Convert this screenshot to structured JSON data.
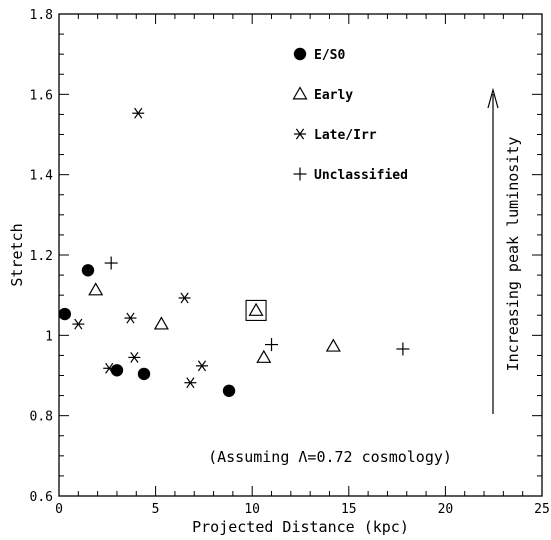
{
  "chart_data": {
    "type": "scatter",
    "xlabel": "Projected Distance (kpc)",
    "ylabel": "Stretch",
    "xlim": [
      0,
      25
    ],
    "ylim": [
      0.6,
      1.8
    ],
    "xticks": [
      0,
      5,
      10,
      15,
      20,
      25
    ],
    "yticks": [
      0.6,
      0.8,
      1.0,
      1.2,
      1.4,
      1.6,
      1.8
    ],
    "xtick_labels": [
      "0",
      "5",
      "10",
      "15",
      "20",
      "25"
    ],
    "ytick_labels": [
      "0.6",
      "0.8",
      "1",
      "1.2",
      "1.4",
      "1.6",
      "1.8"
    ],
    "legend_position": "top-center",
    "series": [
      {
        "name": "E/S0",
        "marker": "filled-circle",
        "points": [
          [
            0.3,
            1.053
          ],
          [
            1.5,
            1.162
          ],
          [
            3.0,
            0.913
          ],
          [
            4.4,
            0.904
          ],
          [
            8.8,
            0.862
          ]
        ]
      },
      {
        "name": "Early",
        "marker": "open-triangle",
        "points": [
          [
            1.9,
            1.113
          ],
          [
            5.3,
            1.028
          ],
          [
            10.2,
            1.062
          ],
          [
            10.6,
            0.945
          ],
          [
            14.2,
            0.973
          ]
        ]
      },
      {
        "name": "Late/Irr",
        "marker": "asterisk",
        "points": [
          [
            4.1,
            1.553
          ],
          [
            1.0,
            1.028
          ],
          [
            3.7,
            1.043
          ],
          [
            6.5,
            1.093
          ],
          [
            3.9,
            0.945
          ],
          [
            2.6,
            0.918
          ],
          [
            7.4,
            0.924
          ],
          [
            6.8,
            0.882
          ]
        ]
      },
      {
        "name": "Unclassified",
        "marker": "plus",
        "points": [
          [
            2.7,
            1.18
          ],
          [
            11.0,
            0.977
          ],
          [
            17.8,
            0.966
          ]
        ]
      }
    ],
    "highlighted_point": [
      10.2,
      1.062
    ],
    "annotations": {
      "arrow_label": "Increasing peak luminosity",
      "note": "(Assuming Λ=0.72 cosmology)"
    }
  }
}
